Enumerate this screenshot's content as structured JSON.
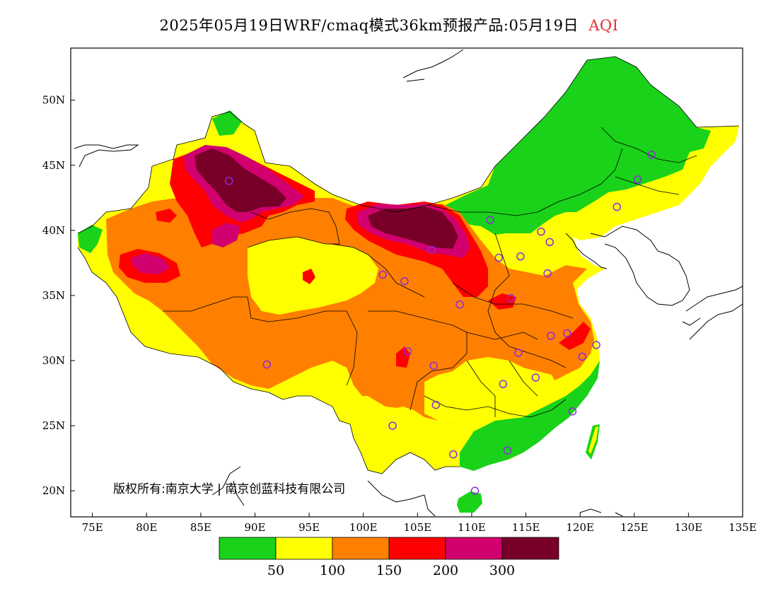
{
  "title": {
    "main": "2025年05月19日WRF/cmaq模式36km预报产品:05月19日",
    "product": "AQI",
    "product_color": "#e03030"
  },
  "map": {
    "lon_range": [
      73,
      135
    ],
    "lat_range": [
      18,
      54
    ],
    "x_ticks": [
      "75E",
      "80E",
      "85E",
      "90E",
      "95E",
      "100E",
      "105E",
      "110E",
      "115E",
      "120E",
      "125E",
      "130E",
      "135E"
    ],
    "y_ticks": [
      "20N",
      "25N",
      "30N",
      "35N",
      "40N",
      "45N",
      "50N"
    ],
    "copyright": "版权所有:南京大学 | 南京创蓝科技有限公司"
  },
  "legend": {
    "colors": [
      "#19d219",
      "#ffff00",
      "#ff7f00",
      "#ff0000",
      "#d2006e",
      "#780028"
    ],
    "labels": [
      "50",
      "100",
      "150",
      "200",
      "300"
    ]
  },
  "stations": [
    [
      87.6,
      43.8
    ],
    [
      91.1,
      29.7
    ],
    [
      101.8,
      36.6
    ],
    [
      103.8,
      36.1
    ],
    [
      106.3,
      38.5
    ],
    [
      104.1,
      30.7
    ],
    [
      106.5,
      29.6
    ],
    [
      106.7,
      26.6
    ],
    [
      102.7,
      25.0
    ],
    [
      108.3,
      22.8
    ],
    [
      110.3,
      20.0
    ],
    [
      113.3,
      23.1
    ],
    [
      112.9,
      28.2
    ],
    [
      115.9,
      28.7
    ],
    [
      119.3,
      26.1
    ],
    [
      114.3,
      30.6
    ],
    [
      117.3,
      31.9
    ],
    [
      118.8,
      32.1
    ],
    [
      121.5,
      31.2
    ],
    [
      120.2,
      30.3
    ],
    [
      113.6,
      34.8
    ],
    [
      108.9,
      34.3
    ],
    [
      112.5,
      37.9
    ],
    [
      114.5,
      38.0
    ],
    [
      117.0,
      36.7
    ],
    [
      117.2,
      39.1
    ],
    [
      116.4,
      39.9
    ],
    [
      111.7,
      40.8
    ],
    [
      123.4,
      41.8
    ],
    [
      125.3,
      43.9
    ],
    [
      126.6,
      45.8
    ]
  ]
}
